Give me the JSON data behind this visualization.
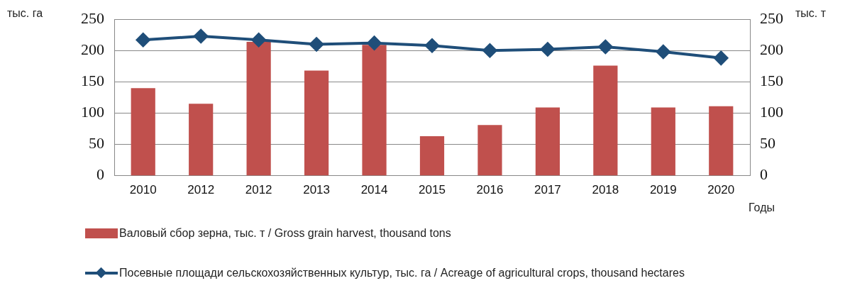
{
  "chart_data": {
    "type": "bar",
    "categories": [
      "2010",
      "2012",
      "2012",
      "2013",
      "2014",
      "2015",
      "2016",
      "2017",
      "2018",
      "2019",
      "2020"
    ],
    "series": [
      {
        "name": "Валовый сбор зерна, тыс. т / Gross grain harvest, thousand tons",
        "axis": "y2",
        "color": "#c0504d",
        "values": [
          140,
          115,
          214,
          168,
          209,
          63,
          81,
          109,
          176,
          109,
          111
        ]
      },
      {
        "name": "Посевные площади сельскохозяйственных культур, тыс. га / Acreage of agricultural crops, thousand hectares",
        "type": "line",
        "color": "#1f4e79",
        "marker": "diamond",
        "values": [
          217,
          223,
          217,
          210,
          212,
          208,
          200,
          202,
          206,
          198,
          188
        ]
      }
    ],
    "ylabel": "тыс. га",
    "y2label": "тыс. т",
    "xlabel": "Годы",
    "ylim": [
      0,
      250
    ],
    "yticks": [
      0,
      50,
      100,
      150,
      200,
      250
    ],
    "y2lim": [
      0,
      250
    ],
    "y2ticks": [
      0,
      50,
      100,
      150,
      200,
      250
    ],
    "grid": "y",
    "legend": "bottom"
  }
}
